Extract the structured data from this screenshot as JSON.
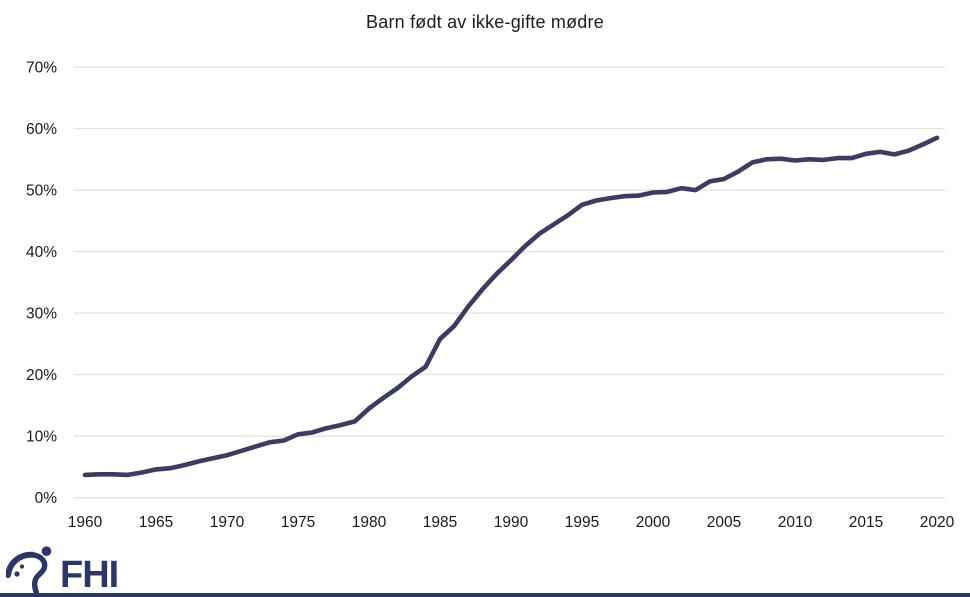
{
  "page": {
    "background": "#ffffff",
    "accent_navy": "#2b3768"
  },
  "chart_data": {
    "type": "line",
    "title": "Barn født av ikke-gifte mødre",
    "xlabel": "",
    "ylabel": "",
    "xlim": [
      1960,
      2020
    ],
    "ylim": [
      0,
      70
    ],
    "grid": "horizontal",
    "legend": "none",
    "line_color": "#3a3d62",
    "gridline_color": "#e2e2e2",
    "tick_label_color": "#1a1a1a",
    "x_ticks": [
      1960,
      1965,
      1970,
      1975,
      1980,
      1985,
      1990,
      1995,
      2000,
      2005,
      2010,
      2015,
      2020
    ],
    "y_ticks": [
      "0%",
      "10%",
      "20%",
      "30%",
      "40%",
      "50%",
      "60%",
      "70%"
    ],
    "x": [
      1960,
      1961,
      1962,
      1963,
      1964,
      1965,
      1966,
      1967,
      1968,
      1969,
      1970,
      1971,
      1972,
      1973,
      1974,
      1975,
      1976,
      1977,
      1978,
      1979,
      1980,
      1981,
      1982,
      1983,
      1984,
      1985,
      1986,
      1987,
      1988,
      1989,
      1990,
      1991,
      1992,
      1993,
      1994,
      1995,
      1996,
      1997,
      1998,
      1999,
      2000,
      2001,
      2002,
      2003,
      2004,
      2005,
      2006,
      2007,
      2008,
      2009,
      2010,
      2011,
      2012,
      2013,
      2014,
      2015,
      2016,
      2017,
      2018,
      2019,
      2020
    ],
    "values": [
      3.7,
      3.8,
      3.8,
      3.7,
      4.1,
      4.6,
      4.8,
      5.3,
      5.9,
      6.4,
      6.9,
      7.6,
      8.3,
      9.0,
      9.3,
      10.3,
      10.6,
      11.3,
      11.8,
      12.4,
      14.5,
      16.2,
      17.8,
      19.7,
      21.3,
      25.8,
      27.9,
      31.1,
      33.9,
      36.4,
      38.6,
      40.9,
      42.9,
      44.4,
      45.9,
      47.6,
      48.3,
      48.7,
      49.0,
      49.1,
      49.6,
      49.7,
      50.3,
      50.0,
      51.4,
      51.8,
      53.0,
      54.5,
      55.0,
      55.1,
      54.8,
      55.0,
      54.9,
      55.2,
      55.2,
      55.9,
      56.2,
      55.8,
      56.4,
      57.4,
      58.5
    ]
  },
  "footer": {
    "logo_text": "FHI",
    "logo_mark": "fhi-figure-icon",
    "logo_color": "#2b3768"
  }
}
